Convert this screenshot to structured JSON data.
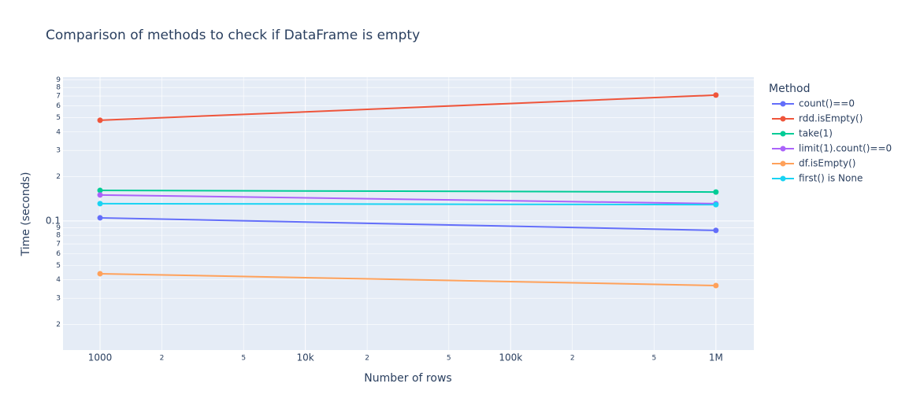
{
  "chart_data": {
    "type": "line",
    "title": "Comparison of methods to check if DataFrame is empty",
    "x_label": "Number of rows",
    "y_label": "Time (seconds)",
    "legend_title": "Method",
    "x_log": true,
    "y_log": true,
    "grid": true,
    "x": [
      1000,
      1000000
    ],
    "xlim": [
      660,
      1530000
    ],
    "xticks": [
      {
        "value": 1000,
        "label": "1000"
      },
      {
        "value": 2000,
        "label": "2"
      },
      {
        "value": 5000,
        "label": "5"
      },
      {
        "value": 10000,
        "label": "10k"
      },
      {
        "value": 20000,
        "label": "2"
      },
      {
        "value": 50000,
        "label": "5"
      },
      {
        "value": 100000,
        "label": "100k"
      },
      {
        "value": 200000,
        "label": "2"
      },
      {
        "value": 500000,
        "label": "5"
      },
      {
        "value": 1000000,
        "label": "1M"
      }
    ],
    "ylim": [
      0.0134,
      0.94
    ],
    "yticks": [
      {
        "value": 0.02,
        "label": "2"
      },
      {
        "value": 0.03,
        "label": "3"
      },
      {
        "value": 0.04,
        "label": "4"
      },
      {
        "value": 0.05,
        "label": "5"
      },
      {
        "value": 0.06,
        "label": "6"
      },
      {
        "value": 0.07,
        "label": "7"
      },
      {
        "value": 0.08,
        "label": "8"
      },
      {
        "value": 0.09,
        "label": "9"
      },
      0.1,
      {
        "value": 0.2,
        "label": "2"
      },
      {
        "value": 0.3,
        "label": "3"
      },
      {
        "value": 0.4,
        "label": "4"
      },
      {
        "value": 0.5,
        "label": "5"
      },
      {
        "value": 0.6,
        "label": "6"
      },
      {
        "value": 0.7,
        "label": "7"
      },
      {
        "value": 0.8,
        "label": "8"
      },
      {
        "value": 0.9,
        "label": "9"
      }
    ],
    "series": [
      {
        "name": "count()==0",
        "color": "#636efa",
        "values": [
          0.105,
          0.0864
        ]
      },
      {
        "name": "rdd.isEmpty()",
        "color": "#ef553b",
        "values": [
          0.48,
          0.71
        ]
      },
      {
        "name": "take(1)",
        "color": "#00cc96",
        "values": [
          0.161,
          0.157
        ]
      },
      {
        "name": "limit(1).count()==0",
        "color": "#ab63fa",
        "values": [
          0.15,
          0.131
        ]
      },
      {
        "name": "df.isEmpty()",
        "color": "#ffa15a",
        "values": [
          0.044,
          0.0366
        ]
      },
      {
        "name": "first() is None",
        "color": "#19d3f3",
        "values": [
          0.131,
          0.129
        ]
      }
    ]
  }
}
